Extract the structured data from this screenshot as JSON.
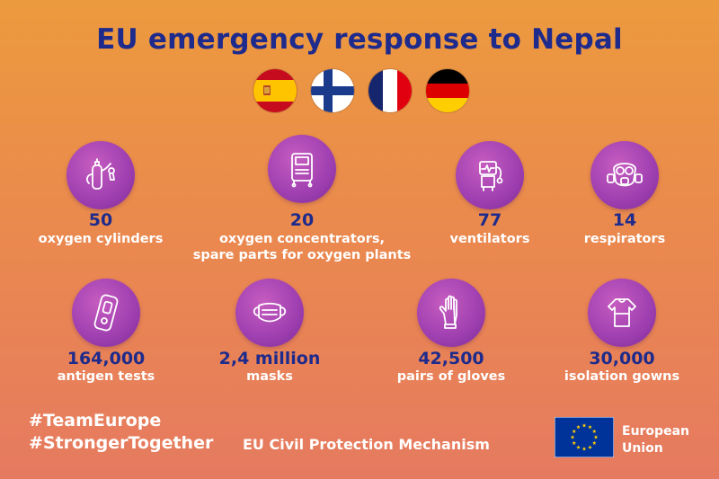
{
  "title": "EU emergency response to Nepal",
  "flags": [
    {
      "name": "spain-flag-icon"
    },
    {
      "name": "finland-flag-icon"
    },
    {
      "name": "france-flag-icon"
    },
    {
      "name": "germany-flag-icon"
    }
  ],
  "stats": [
    {
      "value": "50",
      "label": "oxygen cylinders",
      "icon": "oxygen-cylinder-icon"
    },
    {
      "value": "20",
      "label": "oxygen concentrators,",
      "label2": "spare parts for oxygen plants",
      "icon": "oxygen-concentrator-icon"
    },
    {
      "value": "77",
      "label": "ventilators",
      "icon": "ventilator-icon"
    },
    {
      "value": "14",
      "label": "respirators",
      "icon": "respirator-icon"
    },
    {
      "value": "164,000",
      "label": "antigen tests",
      "icon": "antigen-test-icon"
    },
    {
      "value": "2,4 million",
      "label": "masks",
      "icon": "mask-icon"
    },
    {
      "value": "42,500",
      "label": "pairs of gloves",
      "icon": "glove-icon"
    },
    {
      "value": "30,000",
      "label": "isolation gowns",
      "icon": "gown-icon"
    }
  ],
  "footer": {
    "hashtag1": "#TeamEurope",
    "hashtag2": "#StrongerTogether",
    "mechanism": "EU Civil Protection Mechanism",
    "eu_line1": "European",
    "eu_line2": "Union"
  },
  "colors": {
    "title": "#1e2b8c",
    "value": "#1e2b8c",
    "icon_circle": "#9e3fb0",
    "eu_blue": "#003399",
    "eu_star": "#ffcc00"
  }
}
